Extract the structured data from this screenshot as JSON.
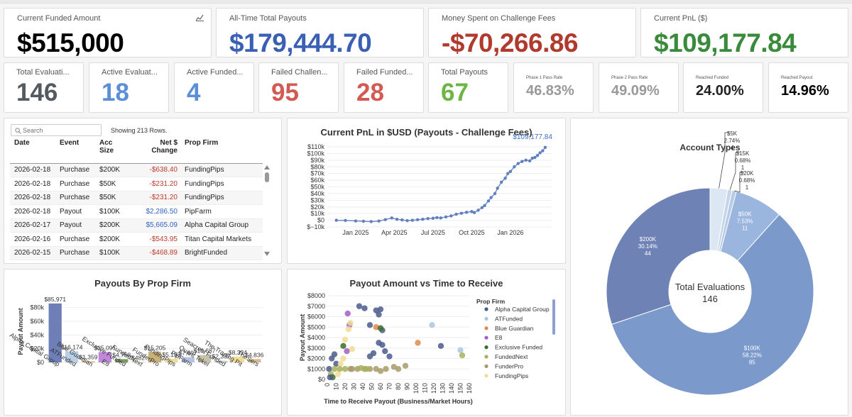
{
  "summary": {
    "funded": {
      "label": "Current Funded Amount",
      "value": "$515,000"
    },
    "payouts": {
      "label": "All-Time Total Payouts",
      "value": "$179,444.70"
    },
    "fees": {
      "label": "Money Spent on Challenge Fees",
      "value": "-$70,266.86"
    },
    "pnl": {
      "label": "Current PnL ($)",
      "value": "$109,177.84"
    }
  },
  "kpis": [
    {
      "label": "Total Evaluati...",
      "value": "146",
      "color": "#555a60"
    },
    {
      "label": "Active Evaluat...",
      "value": "18",
      "color": "#5a8fd8"
    },
    {
      "label": "Active Funded...",
      "value": "4",
      "color": "#5a8fd8"
    },
    {
      "label": "Failed Challen...",
      "value": "95",
      "color": "#d25a52"
    },
    {
      "label": "Failed Funded...",
      "value": "28",
      "color": "#d25a52"
    },
    {
      "label": "Total Payouts",
      "value": "67",
      "color": "#6fb545"
    }
  ],
  "rates": [
    {
      "label": "Phase 1 Pass Rate",
      "value": "46.83%",
      "color": "#999999"
    },
    {
      "label": "Phase 2 Pass Rate",
      "value": "49.09%",
      "color": "#999999"
    },
    {
      "label": "Reached Funded",
      "value": "24.00%",
      "color": "#222222"
    },
    {
      "label": "Reached Payout",
      "value": "14.96%",
      "color": "#000000"
    }
  ],
  "transactions": {
    "search_placeholder": "Search",
    "showing": "Showing 213 Rows.",
    "headers": {
      "date": "Date",
      "event": "Event",
      "size1": "Acc",
      "size2": "Size",
      "change1": "Net $",
      "change2": "Change",
      "firm": "Prop Firm"
    },
    "rows": [
      {
        "date": "2026-02-18",
        "event": "Purchase",
        "size": "$200K",
        "change": "-$638.40",
        "firm": "FundingPips",
        "sign": "neg"
      },
      {
        "date": "2026-02-18",
        "event": "Purchase",
        "size": "$50K",
        "change": "-$231.20",
        "firm": "FundingPips",
        "sign": "neg"
      },
      {
        "date": "2026-02-18",
        "event": "Purchase",
        "size": "$50K",
        "change": "-$231.20",
        "firm": "FundingPips",
        "sign": "neg"
      },
      {
        "date": "2026-02-18",
        "event": "Payout",
        "size": "$100K",
        "change": "$2,286.50",
        "firm": "PipFarm",
        "sign": "pos"
      },
      {
        "date": "2026-02-17",
        "event": "Payout",
        "size": "$200K",
        "change": "$5,665.09",
        "firm": "Alpha Capital Group",
        "sign": "pos"
      },
      {
        "date": "2026-02-16",
        "event": "Purchase",
        "size": "$200K",
        "change": "-$543.95",
        "firm": "Titan Capital Markets",
        "sign": "neg"
      },
      {
        "date": "2026-02-15",
        "event": "Purchase",
        "size": "$100K",
        "change": "-$468.89",
        "firm": "BrightFunded",
        "sign": "neg"
      }
    ]
  },
  "chart_data": [
    {
      "type": "line",
      "title": "Current PnL in $USD (Payouts - Challenge Fees)",
      "end_label": "$109,177.84",
      "x_ticks": [
        "Jan 2025",
        "Apr 2025",
        "Jul 2025",
        "Oct 2025",
        "Jan 2026"
      ],
      "y_ticks": [
        "$110k",
        "$100k",
        "$90k",
        "$80k",
        "$70k",
        "$60k",
        "$50k",
        "$40k",
        "$30k",
        "$20k",
        "$10k",
        "$0",
        "$−10k"
      ],
      "ylim": [
        -10000,
        110000
      ],
      "x_months": [
        -1.5,
        -0.8,
        0,
        0.6,
        1.2,
        1.8,
        2.3,
        2.8,
        3.2,
        3.6,
        4.0,
        4.4,
        4.8,
        5.2,
        5.6,
        6.0,
        6.3,
        6.6,
        7.0,
        7.4,
        7.8,
        8.2,
        8.6,
        9.0,
        9.2,
        9.5,
        9.8,
        10.0,
        10.3,
        10.5,
        10.8,
        11.0,
        11.3,
        11.6,
        11.8,
        12.0,
        12.3,
        12.6,
        12.9,
        13.2,
        13.5,
        13.7,
        13.9,
        14.1,
        14.3,
        14.5,
        14.7
      ],
      "y": [
        0,
        -300,
        -1000,
        -1500,
        -2000,
        -1200,
        1000,
        3500,
        1500,
        500,
        -500,
        0,
        800,
        1500,
        2500,
        3000,
        4000,
        3500,
        5000,
        6500,
        9000,
        10500,
        12000,
        13000,
        11500,
        15000,
        19000,
        22000,
        29000,
        34000,
        40000,
        48000,
        57000,
        63000,
        70000,
        73000,
        80000,
        85000,
        88000,
        90000,
        89000,
        93000,
        94000,
        97000,
        101000,
        104000,
        109177.84
      ]
    },
    {
      "type": "bar",
      "title": "Payouts By Prop Firm",
      "ylabel": "Payout Amount",
      "categories": [
        "Alpha Capital Group",
        "ATFunded",
        "Blue Guardian",
        "E8",
        "Exclusive Funded",
        "FundedNext",
        "FunderPro",
        "FundingPips",
        "PipFarm",
        "Quant Tekel",
        "Seacrest Funded",
        "The Trading Pit",
        "TheSers"
      ],
      "values": [
        85971,
        16174,
        1359,
        15091,
        4758,
        482,
        15205,
        5193,
        7697,
        10687,
        2337,
        8324,
        4836
      ],
      "value_labels": [
        "$85,971",
        "$16,174",
        "$1,359",
        "$15,091",
        "$4,758",
        "$482",
        "$15,205",
        "$5,193",
        "$7,697",
        "$10,687",
        "$2,337",
        "$8,324",
        "$4,836"
      ],
      "colors": [
        "#6e7fb8",
        "#b9cfe6",
        "#d7a86a",
        "#c088d8",
        "#7a9a62",
        "#c8c25a",
        "#c7b07a",
        "#f0dc94",
        "#b5c3e0",
        "#c6c3a8",
        "#c9c9c9",
        "#f0dc94",
        "#d8b98a"
      ],
      "y_ticks": [
        "$80k",
        "$60k",
        "$40k",
        "$20k",
        "$0"
      ],
      "ylim": [
        0,
        90000
      ]
    },
    {
      "type": "scatter",
      "title": "Payout Amount vs Time to Receive",
      "xlabel": "Time to Receive Payout (Business/Market Hours)",
      "ylabel": "Payout Amount",
      "x_ticks": [
        "0",
        "10",
        "20",
        "30",
        "40",
        "50",
        "60",
        "70",
        "80",
        "90",
        "100",
        "110",
        "120",
        "130",
        "140",
        "150",
        "160"
      ],
      "y_ticks": [
        "$8000",
        "$7000",
        "$6000",
        "$5000",
        "$4000",
        "$3000",
        "$2000",
        "$1000",
        "$0"
      ],
      "xlim": [
        0,
        160
      ],
      "ylim": [
        0,
        8000
      ],
      "legend_title": "Prop Firm",
      "legend": [
        {
          "name": "Alpha Capital Group",
          "color": "#4a5a8c"
        },
        {
          "name": "ATFunded",
          "color": "#a9c5e2"
        },
        {
          "name": "Blue Guardian",
          "color": "#e08a4a"
        },
        {
          "name": "E8",
          "color": "#a35cc8"
        },
        {
          "name": "Exclusive Funded",
          "color": "#3e6b2e"
        },
        {
          "name": "FundedNext",
          "color": "#a8b05a"
        },
        {
          "name": "FunderPro",
          "color": "#a89a6a"
        },
        {
          "name": "FundingPips",
          "color": "#f0dc94"
        }
      ],
      "points": [
        {
          "x": 36,
          "y": 7000,
          "c": 0
        },
        {
          "x": 42,
          "y": 6800,
          "c": 0
        },
        {
          "x": 55,
          "y": 6600,
          "c": 0
        },
        {
          "x": 60,
          "y": 6700,
          "c": 0
        },
        {
          "x": 58,
          "y": 6200,
          "c": 0
        },
        {
          "x": 48,
          "y": 5200,
          "c": 0
        },
        {
          "x": 55,
          "y": 5000,
          "c": 2
        },
        {
          "x": 62,
          "y": 4700,
          "c": 0
        },
        {
          "x": 62,
          "y": 3300,
          "c": 0
        },
        {
          "x": 65,
          "y": 2700,
          "c": 0
        },
        {
          "x": 58,
          "y": 3500,
          "c": 0
        },
        {
          "x": 52,
          "y": 2500,
          "c": 0
        },
        {
          "x": 48,
          "y": 2200,
          "c": 0
        },
        {
          "x": 70,
          "y": 2200,
          "c": 0
        },
        {
          "x": 8,
          "y": 2400,
          "c": 0
        },
        {
          "x": 5,
          "y": 2000,
          "c": 0
        },
        {
          "x": 2,
          "y": 1000,
          "c": 0
        },
        {
          "x": 10,
          "y": 1500,
          "c": 0
        },
        {
          "x": 128,
          "y": 3200,
          "c": 0
        },
        {
          "x": 102,
          "y": 3500,
          "c": 2
        },
        {
          "x": 118,
          "y": 5200,
          "c": 1
        },
        {
          "x": 150,
          "y": 2800,
          "c": 1
        },
        {
          "x": 152,
          "y": 2300,
          "c": 5
        },
        {
          "x": 23,
          "y": 6300,
          "c": 3
        },
        {
          "x": 25,
          "y": 5200,
          "c": 3
        },
        {
          "x": 22,
          "y": 2700,
          "c": 3
        },
        {
          "x": 26,
          "y": 5400,
          "c": 7
        },
        {
          "x": 24,
          "y": 4800,
          "c": 7
        },
        {
          "x": 20,
          "y": 3800,
          "c": 7
        },
        {
          "x": 18,
          "y": 2000,
          "c": 7
        },
        {
          "x": 28,
          "y": 2900,
          "c": 7
        },
        {
          "x": 12,
          "y": 500,
          "c": 7
        },
        {
          "x": 15,
          "y": 1500,
          "c": 7
        },
        {
          "x": 60,
          "y": 4900,
          "c": 4
        },
        {
          "x": 18,
          "y": 3200,
          "c": 4
        },
        {
          "x": 8,
          "y": 1000,
          "c": 5
        },
        {
          "x": 14,
          "y": 1000,
          "c": 5
        },
        {
          "x": 20,
          "y": 1000,
          "c": 5
        },
        {
          "x": 28,
          "y": 1000,
          "c": 6
        },
        {
          "x": 34,
          "y": 1000,
          "c": 6
        },
        {
          "x": 42,
          "y": 1000,
          "c": 6
        },
        {
          "x": 48,
          "y": 1000,
          "c": 6
        },
        {
          "x": 55,
          "y": 1000,
          "c": 6
        },
        {
          "x": 60,
          "y": 800,
          "c": 6
        },
        {
          "x": 66,
          "y": 1000,
          "c": 6
        },
        {
          "x": 75,
          "y": 1200,
          "c": 6
        },
        {
          "x": 80,
          "y": 1000,
          "c": 6
        },
        {
          "x": 88,
          "y": 1300,
          "c": 6
        },
        {
          "x": 4,
          "y": 500,
          "c": 5
        },
        {
          "x": 6,
          "y": 200,
          "c": 4
        },
        {
          "x": 3,
          "y": 200,
          "c": 0
        },
        {
          "x": 26,
          "y": 1000,
          "c": 6
        },
        {
          "x": 38,
          "y": 1100,
          "c": 5
        },
        {
          "x": 44,
          "y": 1000,
          "c": 5
        }
      ]
    },
    {
      "type": "pie",
      "title": "Account Types",
      "center_label": "Total Evaluations",
      "center_value": "146",
      "slices": [
        {
          "name": "$100K",
          "pct": "58.22%",
          "count": "85",
          "value": 85,
          "color": "#7b9acb"
        },
        {
          "name": "$200K",
          "pct": "30.14%",
          "count": "44",
          "value": 44,
          "color": "#6e82b6"
        },
        {
          "name": "$5K",
          "pct": "2.74%",
          "count": "4",
          "value": 4,
          "color": "#dde7f3"
        },
        {
          "name": "$15K",
          "pct": "0.68%",
          "count": "1",
          "value": 1,
          "color": "#c5d6ea"
        },
        {
          "name": "$20K",
          "pct": "0.68%",
          "count": "1",
          "value": 1,
          "color": "#b7cbe5"
        },
        {
          "name": "$50K",
          "pct": "7.53%",
          "count": "11",
          "value": 11,
          "color": "#9ab6de"
        }
      ]
    }
  ]
}
